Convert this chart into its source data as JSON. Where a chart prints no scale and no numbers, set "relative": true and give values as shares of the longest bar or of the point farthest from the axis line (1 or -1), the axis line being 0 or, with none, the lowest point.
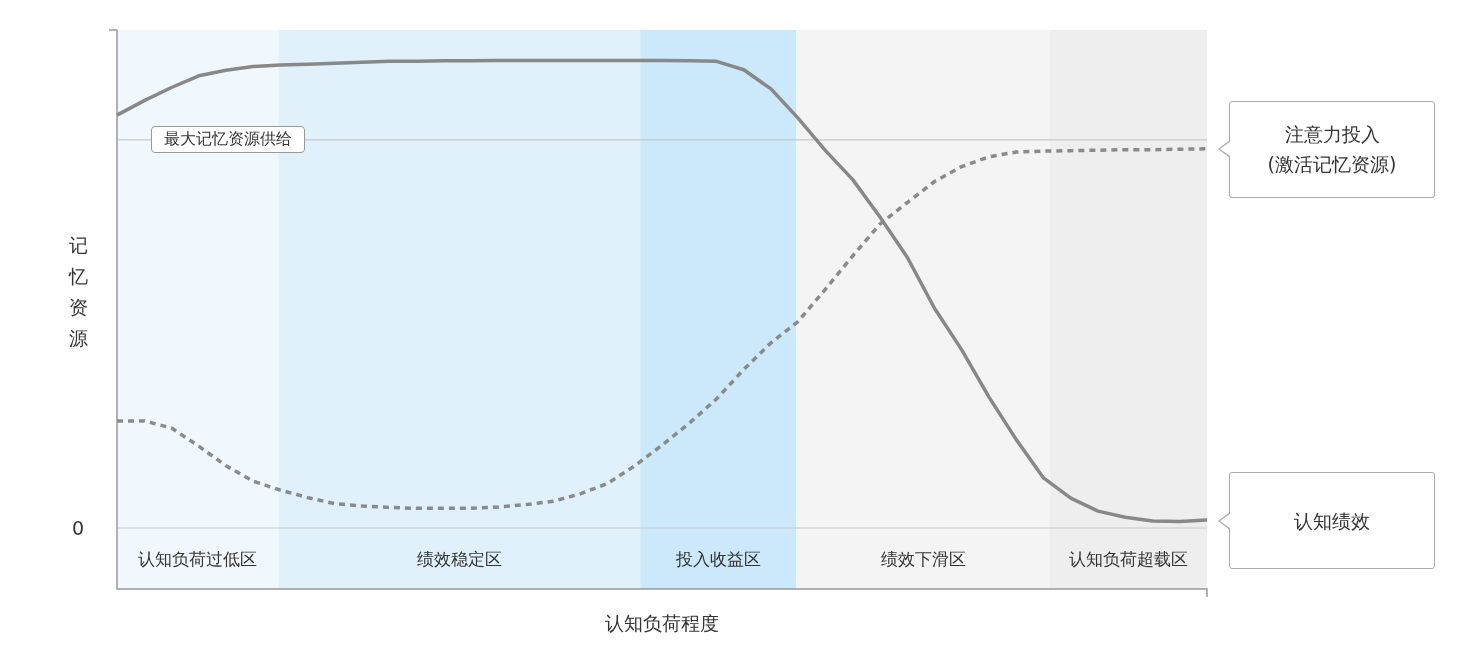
{
  "chart_data": {
    "type": "line",
    "relative": true,
    "xlabel": "认知负荷程度",
    "ylabel": "记忆资源",
    "annotations": [
      "0",
      "认知负荷过低区",
      "绩效稳定区",
      "投入收益区",
      "绩效下滑区",
      "认知负荷超载区"
    ],
    "categories": [
      null,
      null,
      null,
      null,
      null,
      null,
      null,
      null,
      null,
      null,
      null,
      null,
      null,
      null,
      null,
      null,
      null,
      null,
      null,
      null,
      null,
      null,
      null,
      null,
      null,
      null,
      null,
      null,
      null,
      null,
      null,
      null,
      null,
      null,
      null,
      null,
      null,
      null,
      null,
      null,
      null
    ],
    "series": [
      {
        "name": "认知绩效",
        "color": "#888888",
        "line_style": "solid",
        "values": [
          0.883,
          0.914,
          0.942,
          0.967,
          0.979,
          0.987,
          0.99,
          0.992,
          0.994,
          0.996,
          0.998,
          0.998,
          0.999,
          0.999,
          1.0,
          1.0,
          1.0,
          1.0,
          1.0,
          1.0,
          1.0,
          0.999,
          0.998,
          0.98,
          0.939,
          0.876,
          0.807,
          0.745,
          0.665,
          0.579,
          0.47,
          0.381,
          0.28,
          0.189,
          0.107,
          0.064,
          0.036,
          0.023,
          0.015,
          0.014,
          0.017
        ]
      },
      {
        "name": "注意力投入\n(激活记忆资源)",
        "color": "#8a8a8a",
        "line_style": "dashed",
        "values": [
          0.229,
          0.229,
          0.214,
          0.175,
          0.133,
          0.1,
          0.081,
          0.065,
          0.052,
          0.047,
          0.044,
          0.042,
          0.042,
          0.042,
          0.045,
          0.05,
          0.057,
          0.073,
          0.095,
          0.133,
          0.177,
          0.224,
          0.276,
          0.339,
          0.396,
          0.442,
          0.511,
          0.582,
          0.65,
          0.696,
          0.741,
          0.773,
          0.794,
          0.804,
          0.806,
          0.807,
          0.808,
          0.809,
          0.809,
          0.81,
          0.811
        ]
      }
    ],
    "ref_lines": [
      {
        "axis": "y",
        "value": 0.83,
        "label": "最大记忆资源供给",
        "color": "#c8c8c8"
      }
    ]
  }
}
